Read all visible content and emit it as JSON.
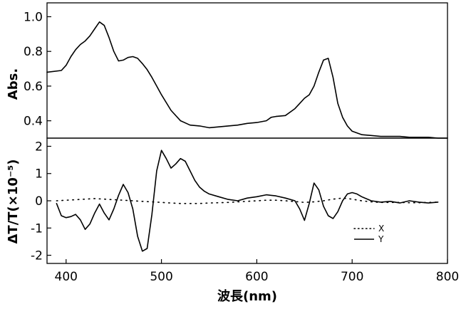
{
  "chart_data": [
    {
      "type": "line",
      "ylabel": "Abs.",
      "xlim": [
        380,
        800
      ],
      "ylim": [
        0.3,
        1.08
      ],
      "yticks": [
        "0.4",
        "0.6",
        "0.8",
        "1.0"
      ],
      "grid": false,
      "series": [
        {
          "style": "solid",
          "x": [
            380,
            395,
            400,
            405,
            410,
            415,
            420,
            425,
            430,
            435,
            440,
            445,
            450,
            455,
            460,
            465,
            470,
            475,
            480,
            485,
            490,
            495,
            500,
            510,
            520,
            530,
            540,
            550,
            560,
            570,
            580,
            590,
            600,
            610,
            615,
            620,
            630,
            640,
            645,
            650,
            655,
            660,
            665,
            670,
            675,
            680,
            685,
            690,
            695,
            700,
            710,
            720,
            730,
            740,
            750,
            760,
            770,
            780,
            790,
            800
          ],
          "y": [
            0.68,
            0.69,
            0.72,
            0.77,
            0.81,
            0.84,
            0.86,
            0.89,
            0.93,
            0.97,
            0.95,
            0.88,
            0.8,
            0.745,
            0.75,
            0.765,
            0.77,
            0.76,
            0.73,
            0.695,
            0.65,
            0.6,
            0.55,
            0.46,
            0.4,
            0.375,
            0.37,
            0.36,
            0.365,
            0.37,
            0.375,
            0.385,
            0.39,
            0.4,
            0.42,
            0.425,
            0.43,
            0.47,
            0.5,
            0.53,
            0.55,
            0.6,
            0.68,
            0.75,
            0.76,
            0.65,
            0.5,
            0.42,
            0.37,
            0.34,
            0.32,
            0.315,
            0.31,
            0.31,
            0.31,
            0.305,
            0.305,
            0.305,
            0.3,
            0.3
          ]
        }
      ]
    },
    {
      "type": "line",
      "xlabel": "波長(nm)",
      "ylabel": "ΔT/T(×10⁻⁵)",
      "xlim": [
        380,
        800
      ],
      "ylim": [
        -2.3,
        2.3
      ],
      "xticks": [
        "400",
        "500",
        "600",
        "700",
        "800"
      ],
      "yticks": [
        "-2",
        "-1",
        "0",
        "1",
        "2"
      ],
      "grid": false,
      "legend_position": "bottom-right",
      "series": [
        {
          "name": "X",
          "style": "dotted",
          "x": [
            390,
            400,
            410,
            420,
            430,
            440,
            450,
            460,
            470,
            480,
            490,
            500,
            510,
            520,
            530,
            540,
            550,
            560,
            570,
            580,
            590,
            600,
            610,
            620,
            630,
            640,
            650,
            660,
            670,
            680,
            690,
            700,
            710,
            720,
            730,
            740,
            750,
            760,
            770,
            780,
            790
          ],
          "y": [
            0.0,
            0.02,
            0.04,
            0.06,
            0.08,
            0.06,
            0.04,
            0.02,
            0.0,
            -0.02,
            -0.04,
            -0.06,
            -0.08,
            -0.1,
            -0.1,
            -0.1,
            -0.08,
            -0.07,
            -0.06,
            -0.04,
            -0.02,
            0.0,
            0.02,
            0.02,
            0.0,
            -0.03,
            -0.06,
            -0.04,
            0.0,
            0.06,
            0.1,
            0.06,
            0.0,
            -0.04,
            -0.06,
            -0.06,
            -0.06,
            -0.07,
            -0.07,
            -0.06,
            -0.05
          ]
        },
        {
          "name": "Y",
          "style": "solid",
          "x": [
            390,
            395,
            400,
            405,
            410,
            415,
            420,
            425,
            430,
            435,
            440,
            445,
            450,
            455,
            460,
            465,
            470,
            475,
            480,
            485,
            490,
            495,
            500,
            505,
            510,
            515,
            520,
            525,
            530,
            535,
            540,
            545,
            550,
            560,
            570,
            580,
            590,
            600,
            610,
            620,
            630,
            640,
            645,
            650,
            655,
            660,
            665,
            670,
            675,
            680,
            685,
            690,
            695,
            700,
            705,
            710,
            720,
            730,
            740,
            750,
            760,
            770,
            780,
            790
          ],
          "y": [
            -0.1,
            -0.55,
            -0.62,
            -0.58,
            -0.5,
            -0.7,
            -1.05,
            -0.85,
            -0.45,
            -0.12,
            -0.45,
            -0.7,
            -0.3,
            0.2,
            0.6,
            0.3,
            -0.3,
            -1.3,
            -1.85,
            -1.75,
            -0.5,
            1.1,
            1.85,
            1.55,
            1.2,
            1.35,
            1.55,
            1.45,
            1.1,
            0.75,
            0.5,
            0.35,
            0.25,
            0.15,
            0.05,
            0.0,
            0.1,
            0.15,
            0.22,
            0.18,
            0.1,
            0.0,
            -0.3,
            -0.72,
            -0.1,
            0.65,
            0.4,
            -0.2,
            -0.55,
            -0.65,
            -0.4,
            0.0,
            0.25,
            0.3,
            0.25,
            0.15,
            0.0,
            -0.05,
            -0.02,
            -0.08,
            0.0,
            -0.05,
            -0.08,
            -0.05
          ]
        }
      ]
    }
  ]
}
